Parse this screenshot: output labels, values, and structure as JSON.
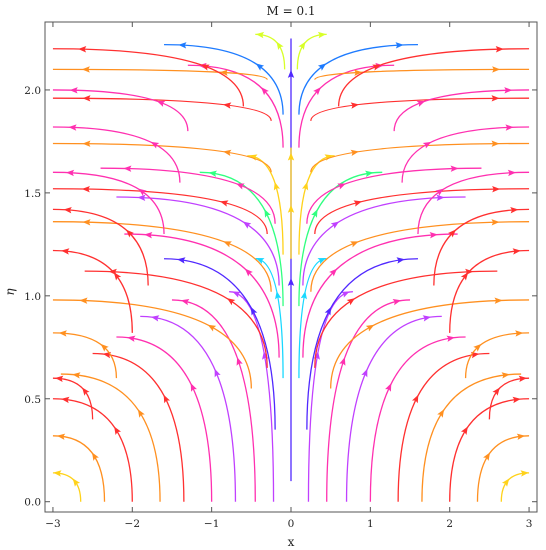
{
  "chart_data": {
    "type": "streamplot",
    "title": "M = 0.1",
    "xlabel": "x",
    "ylabel": "η",
    "xlim": [
      -3.1,
      3.1
    ],
    "ylim": [
      -0.05,
      2.33
    ],
    "x_ticks": [
      -3,
      -2,
      -1,
      0,
      1,
      2,
      3
    ],
    "x_tick_labels": [
      "−3",
      "−2",
      "−1",
      "0",
      "1",
      "2",
      "3"
    ],
    "y_ticks": [
      0.0,
      0.5,
      1.0,
      1.5,
      2.0
    ],
    "y_tick_labels": [
      "0.0",
      "0.5",
      "1.0",
      "1.5",
      "2.0"
    ],
    "grid": false,
    "frame": true,
    "colors": [
      "#ffd21a",
      "#ff9020",
      "#ff3030",
      "#ff30b0",
      "#c040ff",
      "#5028ff",
      "#1e7bff",
      "#18d8ff",
      "#30ff80",
      "#d8ff28"
    ],
    "streamlines": [
      {
        "side": "center",
        "x0": 0.0,
        "y0": 0.1,
        "y1": 2.25,
        "color": "#5028ff"
      },
      {
        "side": "center",
        "x0": 0.0,
        "y0": 1.18,
        "y1": 1.72,
        "color": "#ffd21a"
      },
      {
        "side": "pair",
        "x0": 0.22,
        "y0": 0.0,
        "x1": 0.78,
        "y1": 1.02,
        "color": "#c040ff"
      },
      {
        "side": "pair",
        "x0": 0.1,
        "y0": 0.6,
        "x1": 0.45,
        "y1": 1.18,
        "color": "#18d8ff"
      },
      {
        "side": "pair",
        "x0": 0.1,
        "y0": 1.2,
        "x1": 0.55,
        "y1": 1.68,
        "color": "#ffd21a"
      },
      {
        "side": "pair",
        "x0": 0.1,
        "y0": 0.95,
        "x1": 1.15,
        "y1": 1.6,
        "color": "#30ff80"
      },
      {
        "side": "pair",
        "x0": 0.1,
        "y0": 1.72,
        "x1": 1.3,
        "y1": 2.12,
        "color": "#ff30b0"
      },
      {
        "side": "pair",
        "x0": 0.1,
        "y0": 1.88,
        "x1": 1.6,
        "y1": 2.22,
        "color": "#1e7bff"
      },
      {
        "side": "pair",
        "x0": 0.08,
        "y0": 2.1,
        "x1": 0.45,
        "y1": 2.27,
        "color": "#d8ff28"
      },
      {
        "side": "pair",
        "x0": 0.45,
        "y0": 0.0,
        "x1": 1.5,
        "y1": 0.98,
        "color": "#ff30b0"
      },
      {
        "side": "pair",
        "x0": 0.7,
        "y0": 0.0,
        "x1": 1.9,
        "y1": 0.9,
        "color": "#c040ff"
      },
      {
        "side": "pair",
        "x0": 1.0,
        "y0": 0.0,
        "x1": 2.2,
        "y1": 0.8,
        "color": "#ff30b0"
      },
      {
        "side": "pair",
        "x0": 1.35,
        "y0": 0.0,
        "x1": 2.5,
        "y1": 0.72,
        "color": "#ff3030"
      },
      {
        "side": "pair",
        "x0": 1.65,
        "y0": 0.0,
        "x1": 2.9,
        "y1": 0.62,
        "color": "#ff9020"
      },
      {
        "side": "pair",
        "x0": 2.0,
        "y0": 0.0,
        "x1": 3.0,
        "y1": 0.5,
        "color": "#ff3030"
      },
      {
        "side": "pair",
        "x0": 2.35,
        "y0": 0.0,
        "x1": 3.0,
        "y1": 0.32,
        "color": "#ff9020"
      },
      {
        "side": "pair",
        "x0": 2.65,
        "y0": 0.0,
        "x1": 3.0,
        "y1": 0.14,
        "color": "#ffd21a"
      },
      {
        "side": "pair",
        "x0": 0.2,
        "y0": 0.35,
        "x1": 1.6,
        "y1": 1.18,
        "color": "#5028ff"
      },
      {
        "side": "pair",
        "x0": 0.15,
        "y0": 0.7,
        "x1": 2.1,
        "y1": 1.3,
        "color": "#ff30b0"
      },
      {
        "side": "pair",
        "x0": 0.3,
        "y0": 0.65,
        "x1": 2.6,
        "y1": 1.12,
        "color": "#ff3030"
      },
      {
        "side": "pair",
        "x0": 0.5,
        "y0": 0.55,
        "x1": 3.0,
        "y1": 0.98,
        "color": "#ff9020"
      },
      {
        "side": "pair",
        "x0": 0.15,
        "y0": 1.05,
        "x1": 2.2,
        "y1": 1.48,
        "color": "#c040ff"
      },
      {
        "side": "pair",
        "x0": 0.25,
        "y0": 1.02,
        "x1": 3.0,
        "y1": 1.36,
        "color": "#ff9020"
      },
      {
        "side": "pair",
        "x0": 0.2,
        "y0": 1.35,
        "x1": 2.4,
        "y1": 1.62,
        "color": "#ff30b0"
      },
      {
        "side": "pair",
        "x0": 0.3,
        "y0": 1.3,
        "x1": 3.0,
        "y1": 1.52,
        "color": "#ff3030"
      },
      {
        "side": "pair",
        "x0": 0.25,
        "y0": 1.6,
        "x1": 3.0,
        "y1": 1.74,
        "color": "#ff9020"
      },
      {
        "side": "pair",
        "x0": 0.25,
        "y0": 1.85,
        "x1": 3.0,
        "y1": 1.96,
        "color": "#ff3030"
      },
      {
        "side": "pair",
        "x0": 0.3,
        "y0": 2.05,
        "x1": 3.0,
        "y1": 2.1,
        "color": "#ff9020"
      },
      {
        "side": "pair",
        "x0": 0.6,
        "y0": 1.92,
        "x1": 3.0,
        "y1": 2.2,
        "color": "#ff3030"
      },
      {
        "side": "pair",
        "x0": 1.3,
        "y0": 1.8,
        "x1": 3.0,
        "y1": 2.0,
        "color": "#ff30b0"
      },
      {
        "side": "pair",
        "x0": 1.4,
        "y0": 1.55,
        "x1": 3.0,
        "y1": 1.82,
        "color": "#ff30b0"
      },
      {
        "side": "pair",
        "x0": 1.6,
        "y0": 1.3,
        "x1": 3.0,
        "y1": 1.6,
        "color": "#ff30b0"
      },
      {
        "side": "pair",
        "x0": 1.8,
        "y0": 1.05,
        "x1": 3.0,
        "y1": 1.42,
        "color": "#ff3030"
      },
      {
        "side": "pair",
        "x0": 2.0,
        "y0": 0.82,
        "x1": 3.0,
        "y1": 1.22,
        "color": "#ff3030"
      },
      {
        "side": "pair",
        "x0": 2.2,
        "y0": 0.6,
        "x1": 3.0,
        "y1": 0.82,
        "color": "#ff9020"
      },
      {
        "side": "pair",
        "x0": 2.5,
        "y0": 0.4,
        "x1": 3.0,
        "y1": 0.6,
        "color": "#ff3030"
      }
    ]
  }
}
